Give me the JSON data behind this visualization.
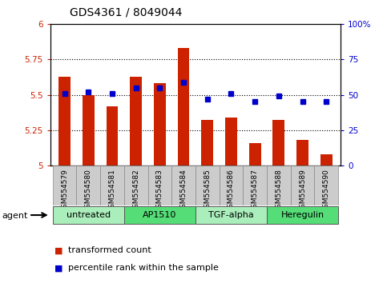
{
  "title": "GDS4361 / 8049044",
  "samples": [
    "GSM554579",
    "GSM554580",
    "GSM554581",
    "GSM554582",
    "GSM554583",
    "GSM554584",
    "GSM554585",
    "GSM554586",
    "GSM554587",
    "GSM554588",
    "GSM554589",
    "GSM554590"
  ],
  "bar_values": [
    5.63,
    5.5,
    5.42,
    5.63,
    5.58,
    5.83,
    5.32,
    5.34,
    5.16,
    5.32,
    5.18,
    5.08
  ],
  "dot_values": [
    51,
    52,
    51,
    55,
    55,
    59,
    47,
    51,
    45,
    49,
    45,
    45
  ],
  "ylim_left": [
    5.0,
    6.0
  ],
  "ylim_right": [
    0,
    100
  ],
  "yticks_left": [
    5.0,
    5.25,
    5.5,
    5.75,
    6.0
  ],
  "yticks_right": [
    0,
    25,
    50,
    75,
    100
  ],
  "ytick_labels_left": [
    "5",
    "5.25",
    "5.5",
    "5.75",
    "6"
  ],
  "ytick_labels_right": [
    "0",
    "25",
    "50",
    "75",
    "100%"
  ],
  "bar_color": "#cc2200",
  "dot_color": "#0000cc",
  "groups": [
    {
      "label": "untreated",
      "start": 0,
      "end": 3,
      "color": "#aaeebb"
    },
    {
      "label": "AP1510",
      "start": 3,
      "end": 6,
      "color": "#55dd77"
    },
    {
      "label": "TGF-alpha",
      "start": 6,
      "end": 9,
      "color": "#aaeebb"
    },
    {
      "label": "Heregulin",
      "start": 9,
      "end": 12,
      "color": "#55dd77"
    }
  ],
  "agent_label": "agent",
  "legend_bar_label": "transformed count",
  "legend_dot_label": "percentile rank within the sample",
  "grid_color": "#000000",
  "bg_color": "#ffffff",
  "plot_bg": "#ffffff",
  "tick_label_color_left": "#cc2200",
  "tick_label_color_right": "#0000cc",
  "bar_width": 0.5,
  "sample_bg_color": "#cccccc"
}
